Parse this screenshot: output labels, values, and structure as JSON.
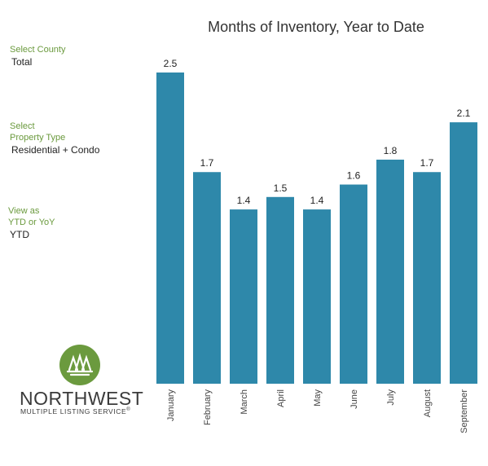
{
  "filters": {
    "county": {
      "label": "Select County",
      "value": "Total"
    },
    "property_type": {
      "label_line1": "Select",
      "label_line2": "Property Type",
      "value": "Residential + Condo"
    },
    "view_as": {
      "label_line1": "View as",
      "label_line2": "YTD or YoY",
      "value": "YTD"
    }
  },
  "logo": {
    "name": "NORTHWEST",
    "subtitle": "MULTIPLE LISTING SERVICE",
    "mark": "®",
    "color": "#6b9a3e"
  },
  "chart_data": {
    "type": "bar",
    "title": "Months of Inventory, Year to Date",
    "xlabel": "",
    "ylabel": "",
    "categories": [
      "January",
      "February",
      "March",
      "April",
      "May",
      "June",
      "July",
      "August",
      "September"
    ],
    "values": [
      2.5,
      1.7,
      1.4,
      1.5,
      1.4,
      1.6,
      1.8,
      1.7,
      2.1
    ],
    "value_labels": [
      "2.5",
      "1.7",
      "1.4",
      "1.5",
      "1.4",
      "1.6",
      "1.8",
      "1.7",
      "2.1"
    ],
    "ylim": [
      0,
      2.5
    ],
    "grid": false,
    "bar_color": "#2e88aa"
  }
}
